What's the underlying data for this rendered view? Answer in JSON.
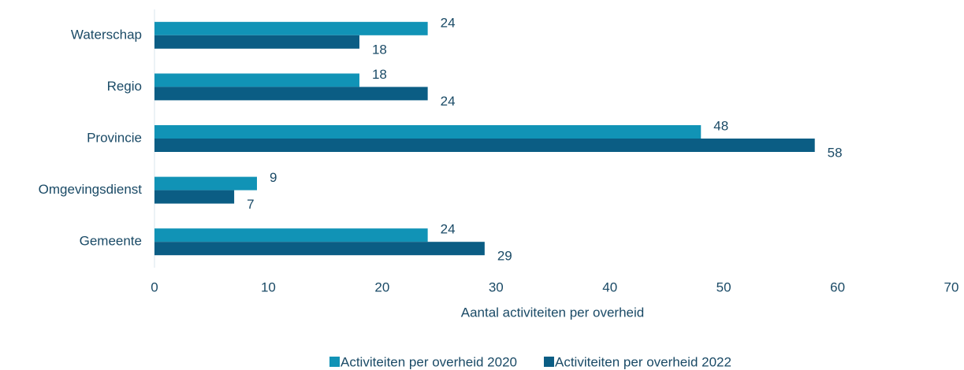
{
  "chart_data": {
    "type": "hbar",
    "categories": [
      "Waterschap",
      "Regio",
      "Provincie",
      "Omgevingsdienst",
      "Gemeente"
    ],
    "series": [
      {
        "name": "Activiteiten per overheid 2020",
        "color": "#1193b6",
        "values": [
          24,
          18,
          48,
          9,
          24
        ]
      },
      {
        "name": "Activiteiten per overheid 2022",
        "color": "#0b5d84",
        "values": [
          18,
          24,
          58,
          7,
          29
        ]
      }
    ],
    "xlabel": "Aantal activiteiten per overheid",
    "xlim": [
      0,
      70
    ],
    "xticks": [
      0,
      10,
      20,
      30,
      40,
      50,
      60,
      70
    ],
    "legend": "bottom"
  }
}
